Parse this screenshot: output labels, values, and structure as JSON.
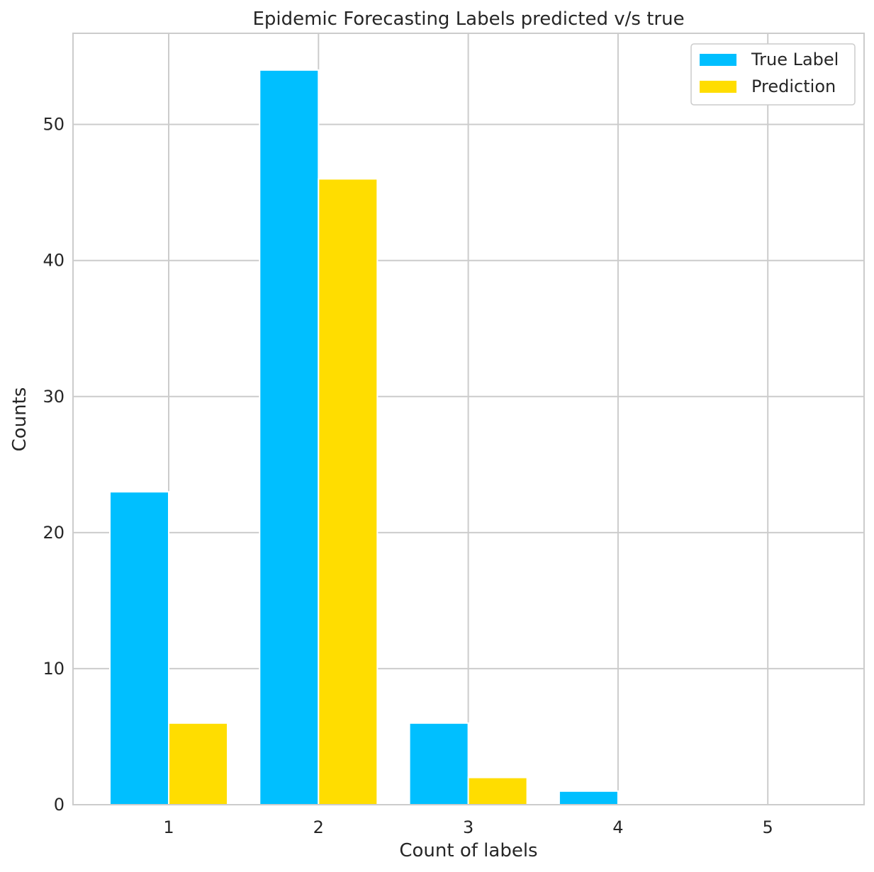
{
  "chart_data": {
    "type": "bar",
    "title": "Epidemic Forecasting Labels predicted v/s true",
    "xlabel": "Count of labels",
    "ylabel": "Counts",
    "categories": [
      "1",
      "2",
      "3",
      "4",
      "5"
    ],
    "series": [
      {
        "name": "True Label",
        "values": [
          23,
          54,
          6,
          1,
          0
        ],
        "color": "#00bfff"
      },
      {
        "name": "Prediction",
        "values": [
          6,
          46,
          2,
          0,
          0
        ],
        "color": "#ffdd00"
      }
    ],
    "ylim": [
      0,
      56.7
    ],
    "yticks": [
      0,
      10,
      20,
      30,
      40,
      50
    ],
    "grid": true,
    "legend_position": "top-right"
  }
}
